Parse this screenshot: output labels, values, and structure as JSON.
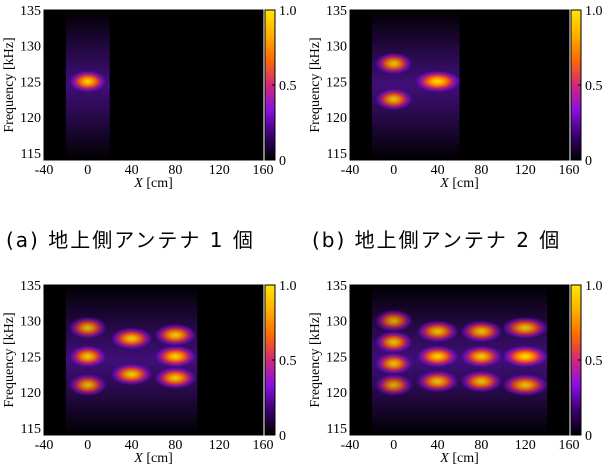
{
  "colorbar": {
    "ticks": [
      {
        "value": 1.0,
        "label": "1.0"
      },
      {
        "value": 0.5,
        "label": "0.5"
      },
      {
        "value": 0,
        "label": "0"
      }
    ],
    "colormap": [
      "#000000",
      "#3a0070",
      "#8a10e0",
      "#d0287a",
      "#ff6a00",
      "#ffb000",
      "#ffe600"
    ]
  },
  "axes": {
    "xlabel_var": "X",
    "xlabel_unit": " [cm]",
    "ylabel": "Frequency [kHz]",
    "xticks": [
      -40,
      0,
      40,
      80,
      120,
      160
    ],
    "yticks": [
      115,
      120,
      125,
      130,
      135
    ],
    "xlim": [
      -40,
      160
    ],
    "ylim": [
      114,
      135
    ]
  },
  "captions": {
    "a": "(a) 地上側アンテナ 1 個",
    "b": "(b) 地上側アンテナ 2 個"
  },
  "chart_data": [
    {
      "type": "heatmap",
      "panel": "a",
      "xlabel": "X [cm]",
      "ylabel": "Frequency [kHz]",
      "xlim": [
        -40,
        160
      ],
      "ylim": [
        114,
        135
      ],
      "zlim": [
        0,
        1.0
      ],
      "spots": [
        {
          "x": 0,
          "y": 125,
          "intensity": 0.95,
          "x_halfwidth": 18
        }
      ]
    },
    {
      "type": "heatmap",
      "panel": "b",
      "xlabel": "X [cm]",
      "ylabel": "Frequency [kHz]",
      "xlim": [
        -40,
        160
      ],
      "ylim": [
        114,
        135
      ],
      "zlim": [
        0,
        1.0
      ],
      "spots": [
        {
          "x": 0,
          "y": 127.5,
          "intensity": 0.85,
          "x_halfwidth": 18
        },
        {
          "x": 0,
          "y": 122.5,
          "intensity": 0.85,
          "x_halfwidth": 18
        },
        {
          "x": 40,
          "y": 125,
          "intensity": 1.0,
          "x_halfwidth": 22
        }
      ]
    },
    {
      "type": "heatmap",
      "panel": "c",
      "xlabel": "X [cm]",
      "ylabel": "Frequency [kHz]",
      "xlim": [
        -40,
        160
      ],
      "ylim": [
        114,
        135
      ],
      "zlim": [
        0,
        1.0
      ],
      "spots": [
        {
          "x": 0,
          "y": 129,
          "intensity": 0.8,
          "x_halfwidth": 18
        },
        {
          "x": 0,
          "y": 125,
          "intensity": 0.9,
          "x_halfwidth": 18
        },
        {
          "x": 0,
          "y": 121,
          "intensity": 0.8,
          "x_halfwidth": 18
        },
        {
          "x": 40,
          "y": 127.5,
          "intensity": 0.9,
          "x_halfwidth": 20
        },
        {
          "x": 40,
          "y": 122.5,
          "intensity": 0.9,
          "x_halfwidth": 20
        },
        {
          "x": 80,
          "y": 128,
          "intensity": 0.9,
          "x_halfwidth": 20
        },
        {
          "x": 80,
          "y": 125,
          "intensity": 0.95,
          "x_halfwidth": 20
        },
        {
          "x": 80,
          "y": 122,
          "intensity": 0.9,
          "x_halfwidth": 20
        }
      ]
    },
    {
      "type": "heatmap",
      "panel": "d",
      "xlabel": "X [cm]",
      "ylabel": "Frequency [kHz]",
      "xlim": [
        -40,
        160
      ],
      "ylim": [
        114,
        135
      ],
      "zlim": [
        0,
        1.0
      ],
      "spots": [
        {
          "x": 0,
          "y": 130,
          "intensity": 0.75,
          "x_halfwidth": 18
        },
        {
          "x": 0,
          "y": 127,
          "intensity": 0.85,
          "x_halfwidth": 18
        },
        {
          "x": 0,
          "y": 124,
          "intensity": 0.85,
          "x_halfwidth": 18
        },
        {
          "x": 0,
          "y": 121,
          "intensity": 0.75,
          "x_halfwidth": 18
        },
        {
          "x": 40,
          "y": 128.5,
          "intensity": 0.85,
          "x_halfwidth": 20
        },
        {
          "x": 40,
          "y": 125,
          "intensity": 0.95,
          "x_halfwidth": 20
        },
        {
          "x": 40,
          "y": 121.5,
          "intensity": 0.85,
          "x_halfwidth": 20
        },
        {
          "x": 80,
          "y": 128.5,
          "intensity": 0.85,
          "x_halfwidth": 20
        },
        {
          "x": 80,
          "y": 125,
          "intensity": 0.9,
          "x_halfwidth": 20
        },
        {
          "x": 80,
          "y": 121.5,
          "intensity": 0.85,
          "x_halfwidth": 20
        },
        {
          "x": 120,
          "y": 129,
          "intensity": 0.85,
          "x_halfwidth": 22
        },
        {
          "x": 120,
          "y": 125,
          "intensity": 1.0,
          "x_halfwidth": 22
        },
        {
          "x": 120,
          "y": 121,
          "intensity": 0.85,
          "x_halfwidth": 22
        }
      ]
    }
  ]
}
